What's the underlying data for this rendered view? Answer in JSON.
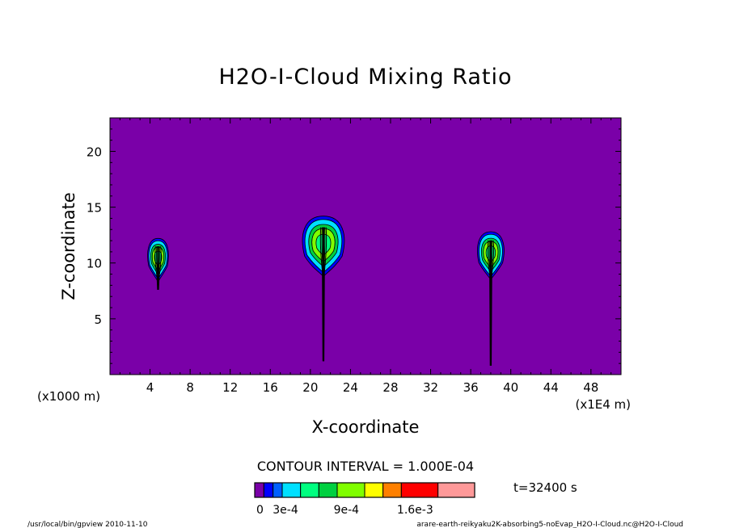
{
  "chart_data": {
    "type": "contour",
    "title": "H2O-I-Cloud Mixing Ratio",
    "xlabel": "X-coordinate",
    "ylabel": "Z-coordinate",
    "x_unit_label": "(x1E4 m)",
    "y_unit_label": "(x1000 m)",
    "xlim": [
      0,
      51
    ],
    "ylim": [
      0,
      23
    ],
    "x_ticks": [
      4,
      8,
      12,
      16,
      20,
      24,
      28,
      32,
      36,
      40,
      44,
      48
    ],
    "y_ticks": [
      5,
      10,
      15,
      20
    ],
    "contour_interval_text": "CONTOUR INTERVAL = 1.000E-04",
    "time_text": "t=32400 s",
    "colorbar": {
      "colors": [
        "#7a00a8",
        "#0000ff",
        "#0060ff",
        "#00e0ff",
        "#00ff80",
        "#00d040",
        "#80ff00",
        "#ffff00",
        "#ff8000",
        "#ff0000",
        "#ff9999"
      ],
      "widths": [
        1,
        1,
        1,
        2,
        2,
        2,
        3,
        2,
        2,
        4,
        4
      ],
      "labels": [
        {
          "text": "0",
          "at": 0
        },
        {
          "text": "3e-4",
          "at": 3
        },
        {
          "text": "9e-4",
          "at": 9
        },
        {
          "text": "1.6e-3",
          "at": 16
        }
      ]
    },
    "background_color": "#7a00a8",
    "clouds": [
      {
        "name": "cloud-1",
        "x_center": 4.8,
        "z_top": 12.2,
        "z_bottom": 9.0,
        "half_width": 1.1,
        "stem_bottom": 7.6
      },
      {
        "name": "cloud-2",
        "x_center": 21.3,
        "z_top": 14.2,
        "z_bottom": 9.5,
        "half_width": 2.2,
        "stem_bottom": 1.2
      },
      {
        "name": "cloud-3",
        "x_center": 38.0,
        "z_top": 12.8,
        "z_bottom": 9.2,
        "half_width": 1.4,
        "stem_bottom": 0.8
      }
    ]
  },
  "footer": {
    "left": "/usr/local/bin/gpview  2010-11-10",
    "right": "arare-earth-reikyaku2K-absorbing5-noEvap_H2O-I-Cloud.nc@H2O-I-Cloud"
  }
}
